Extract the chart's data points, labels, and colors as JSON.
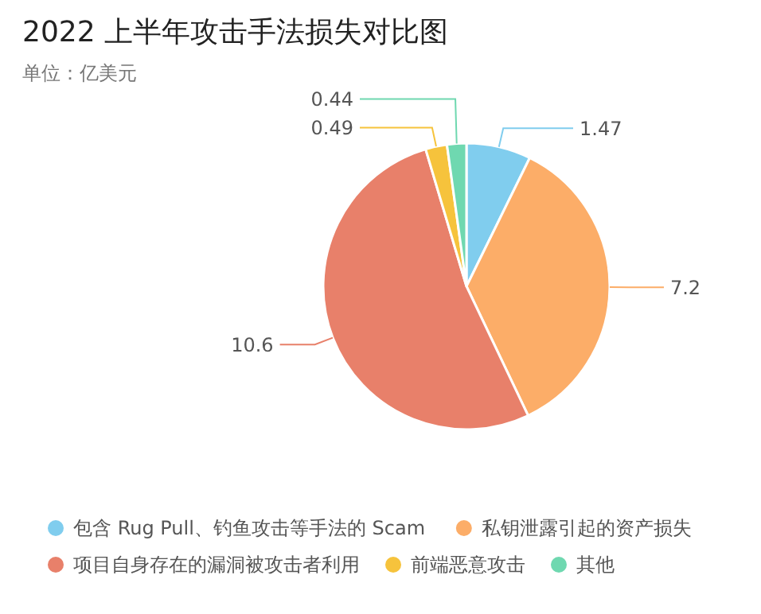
{
  "chart_data": {
    "type": "pie",
    "title": "2022 上半年攻击手法损失对比图",
    "subtitle": "单位：亿美元",
    "categories": [
      "包含 Rug Pull、钓鱼攻击等手法的 Scam",
      "私钥泄露引起的资产损失",
      "项目自身存在的漏洞被攻击者利用",
      "前端恶意攻击",
      "其他"
    ],
    "values": [
      1.47,
      7.2,
      10.6,
      0.49,
      0.44
    ],
    "colors": [
      "#80cdee",
      "#fcad68",
      "#e8806a",
      "#f6c33c",
      "#6fd8b0"
    ],
    "data_labels": true,
    "legend": "bottom"
  }
}
